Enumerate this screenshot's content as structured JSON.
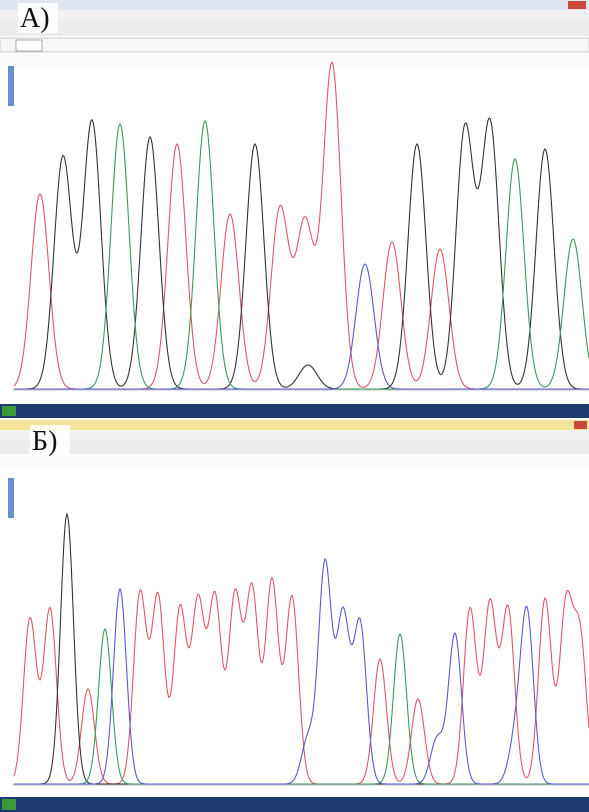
{
  "panels": [
    {
      "label": "А)"
    },
    {
      "label": "Б)"
    }
  ]
}
